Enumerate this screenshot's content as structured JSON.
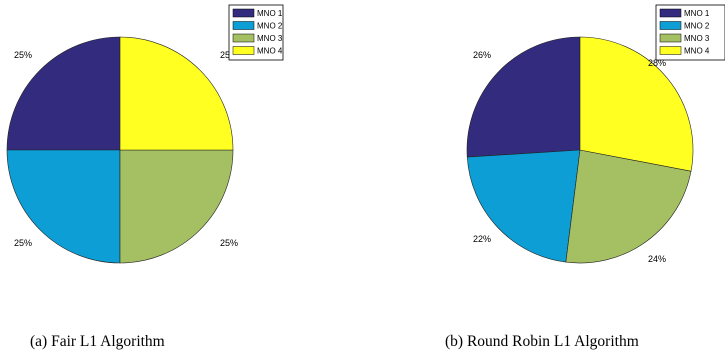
{
  "chart_data": [
    {
      "type": "pie",
      "caption": "(a) Fair L1 Algorithm",
      "legend_position": "top-right",
      "slices": [
        {
          "label": "MNO 1",
          "value": 25,
          "percent_label": "25%",
          "color": "#332c7e"
        },
        {
          "label": "MNO 2",
          "value": 25,
          "percent_label": "25%",
          "color": "#0c9ed4"
        },
        {
          "label": "MNO 3",
          "value": 25,
          "percent_label": "25%",
          "color": "#a4c063"
        },
        {
          "label": "MNO 4",
          "value": 25,
          "percent_label": "25%",
          "color": "#ffff22"
        }
      ]
    },
    {
      "type": "pie",
      "caption": "(b) Round Robin L1 Algorithm",
      "legend_position": "top-right",
      "slices": [
        {
          "label": "MNO 1",
          "value": 26,
          "percent_label": "26%",
          "color": "#332c7e"
        },
        {
          "label": "MNO 2",
          "value": 22,
          "percent_label": "22%",
          "color": "#0c9ed4"
        },
        {
          "label": "MNO 3",
          "value": 24,
          "percent_label": "24%",
          "color": "#a4c063"
        },
        {
          "label": "MNO 4",
          "value": 28,
          "percent_label": "28%",
          "color": "#ffff22"
        }
      ]
    }
  ]
}
